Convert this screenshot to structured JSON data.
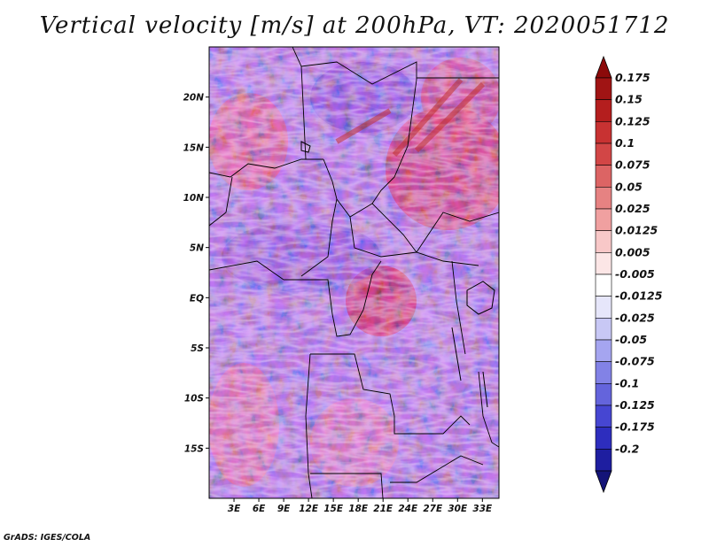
{
  "title": "Vertical velocity [m/s] at 200hPa, VT: 2020051712",
  "credit": "GrADS: IGES/COLA",
  "map": {
    "lon_range": [
      0,
      35
    ],
    "lat_range": [
      -20,
      25
    ],
    "lat_ticks": [
      {
        "value": 20,
        "label": "20N"
      },
      {
        "value": 15,
        "label": "15N"
      },
      {
        "value": 10,
        "label": "10N"
      },
      {
        "value": 5,
        "label": "5N"
      },
      {
        "value": 0,
        "label": "EQ"
      },
      {
        "value": -5,
        "label": "5S"
      },
      {
        "value": -10,
        "label": "10S"
      },
      {
        "value": -15,
        "label": "15S"
      }
    ],
    "lon_ticks": [
      {
        "value": 3,
        "label": "3E"
      },
      {
        "value": 6,
        "label": "6E"
      },
      {
        "value": 9,
        "label": "9E"
      },
      {
        "value": 12,
        "label": "12E"
      },
      {
        "value": 15,
        "label": "15E"
      },
      {
        "value": 18,
        "label": "18E"
      },
      {
        "value": 21,
        "label": "21E"
      },
      {
        "value": 24,
        "label": "24E"
      },
      {
        "value": 27,
        "label": "27E"
      },
      {
        "value": 30,
        "label": "30E"
      },
      {
        "value": 33,
        "label": "33E"
      }
    ]
  },
  "colorbar": {
    "levels": [
      {
        "label": "0.175",
        "color": "#a01414"
      },
      {
        "label": "0.15",
        "color": "#b41e1e"
      },
      {
        "label": "0.125",
        "color": "#c83232"
      },
      {
        "label": "0.1",
        "color": "#d24646"
      },
      {
        "label": "0.075",
        "color": "#dc6464"
      },
      {
        "label": "0.05",
        "color": "#e68282"
      },
      {
        "label": "0.025",
        "color": "#f0a0a0"
      },
      {
        "label": "0.0125",
        "color": "#f8c8c8"
      },
      {
        "label": "0.005",
        "color": "#fce6e6"
      },
      {
        "label": "-0.005",
        "color": "#ffffff"
      },
      {
        "label": "-0.0125",
        "color": "#e6e6fa"
      },
      {
        "label": "-0.025",
        "color": "#c8c8f5"
      },
      {
        "label": "-0.05",
        "color": "#a5a5f0"
      },
      {
        "label": "-0.075",
        "color": "#8282e6"
      },
      {
        "label": "-0.1",
        "color": "#6464dc"
      },
      {
        "label": "-0.125",
        "color": "#4646d2"
      },
      {
        "label": "-0.175",
        "color": "#2d2dbe"
      },
      {
        "label": "-0.2",
        "color": "#1e1ea0"
      }
    ],
    "top_cap_color": "#8c0a0a",
    "bottom_cap_color": "#141478"
  }
}
